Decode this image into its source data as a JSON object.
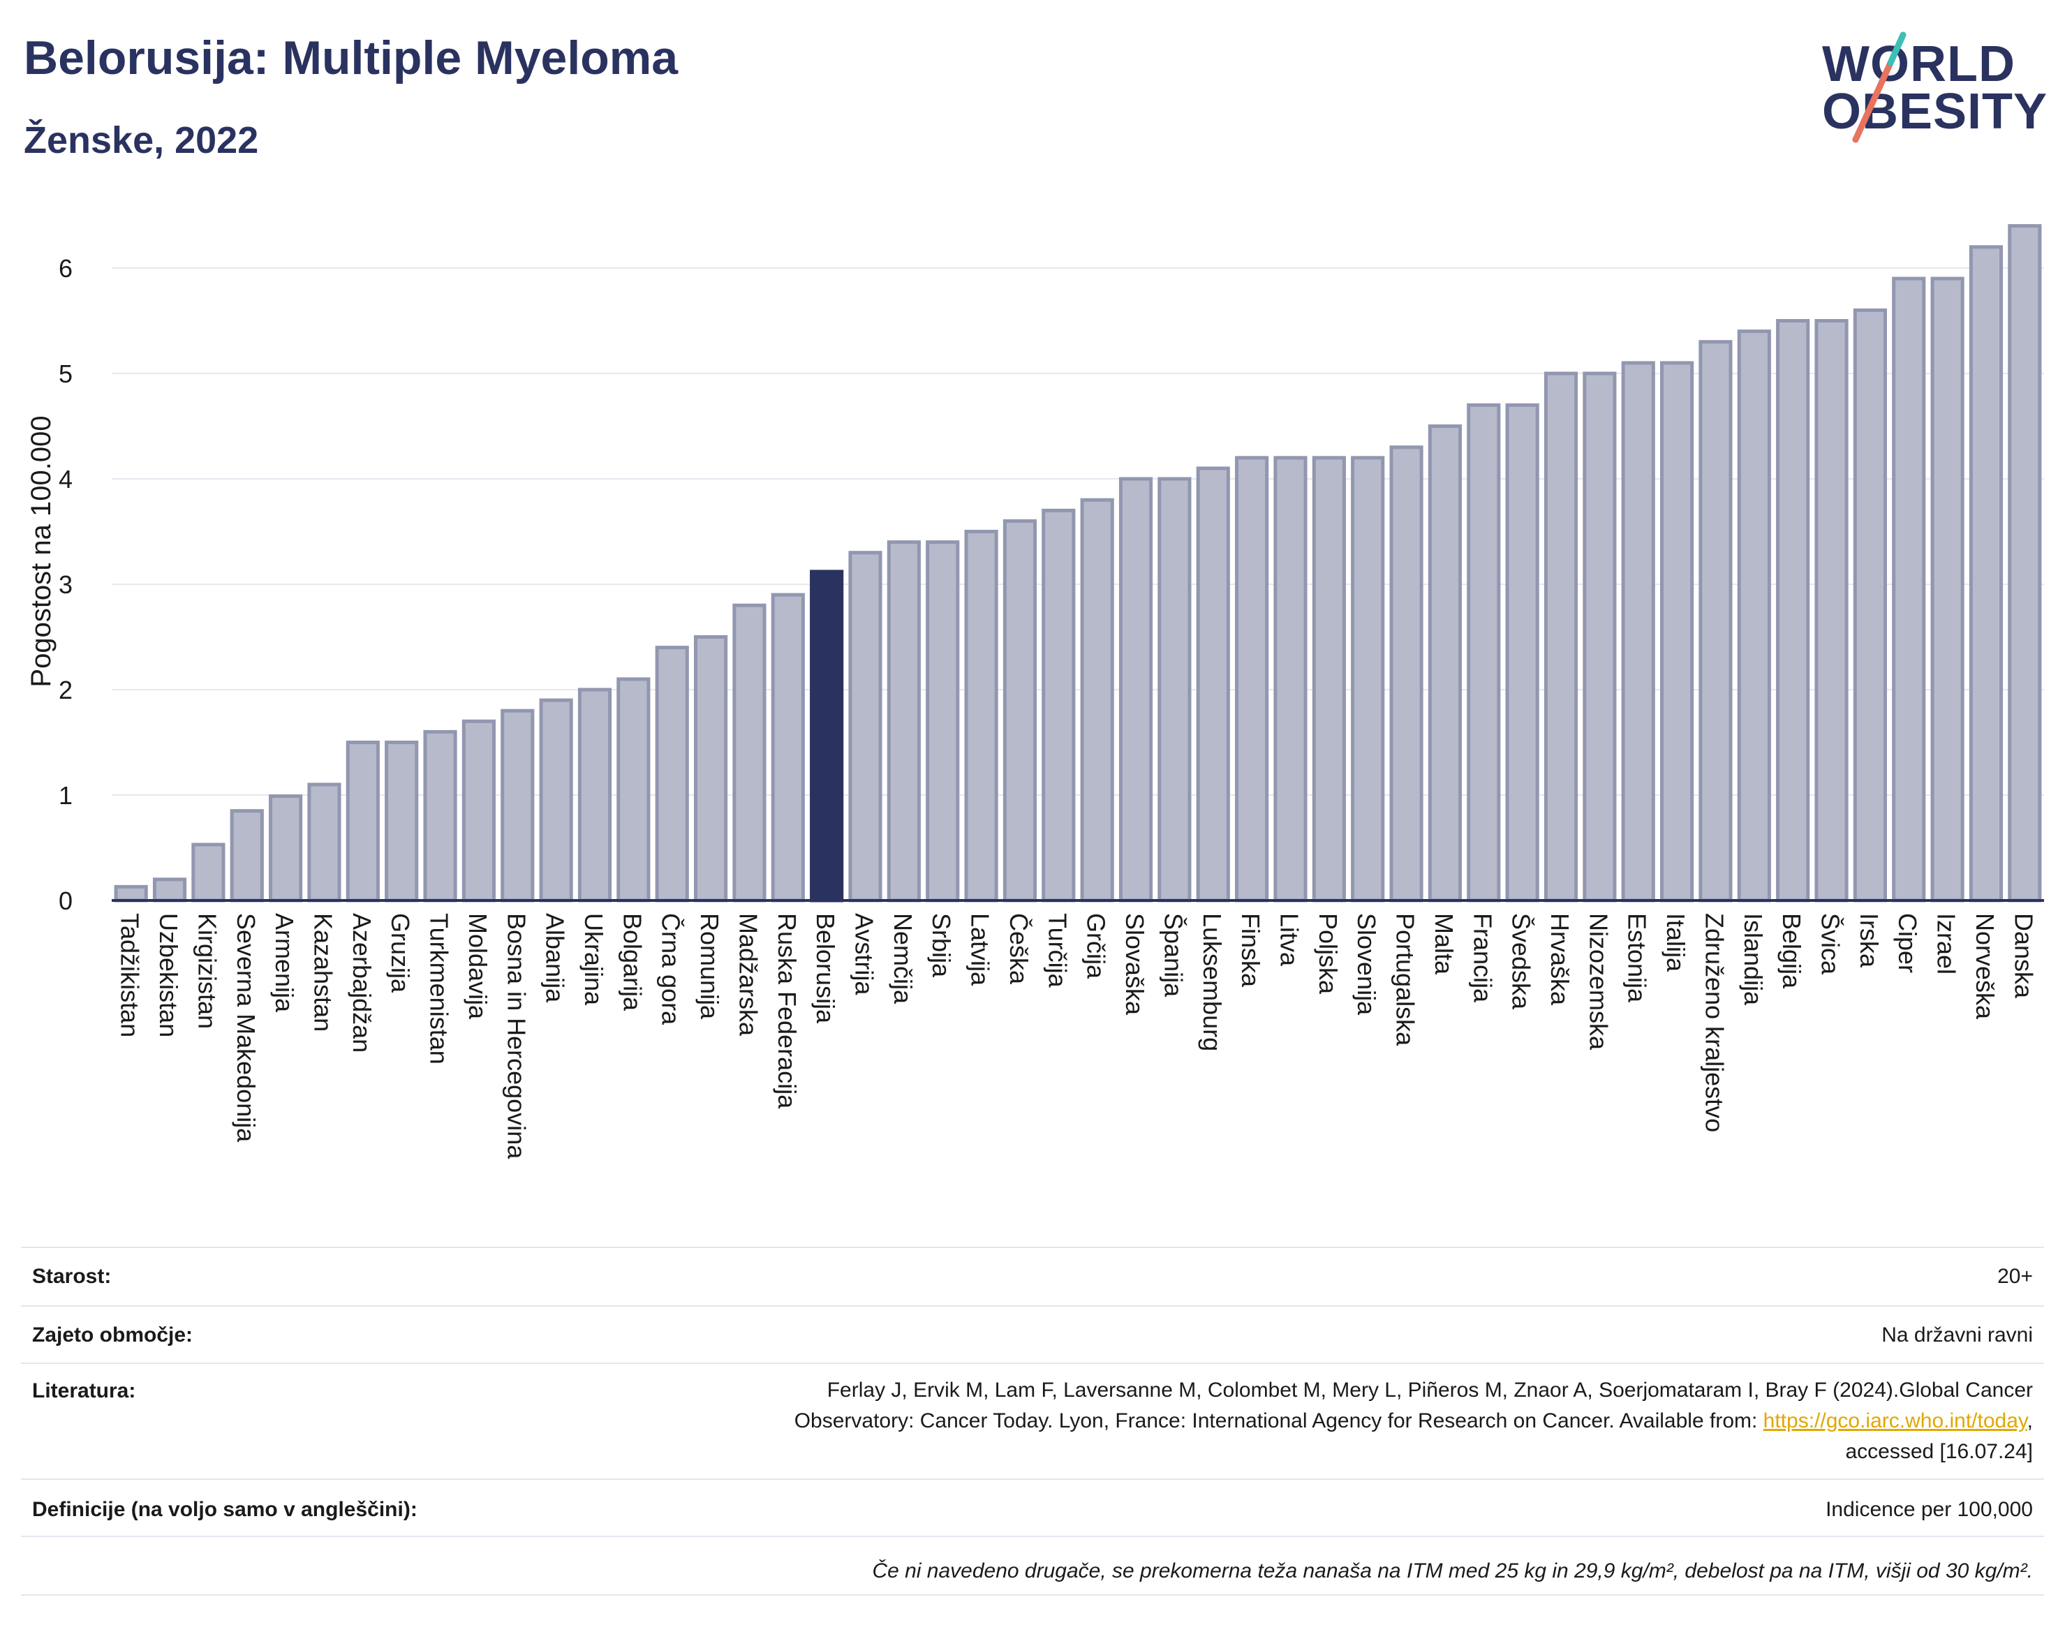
{
  "header": {
    "title": "Belorusija: Multiple Myeloma",
    "subtitle": "Ženske, 2022"
  },
  "logo": {
    "line1": "WORLD",
    "line2": "OBESITY"
  },
  "chart_data": {
    "type": "bar",
    "title": "Belorusija: Multiple Myeloma",
    "subtitle": "Ženske, 2022",
    "ylabel": "Pogostost na 100.000",
    "xlabel": "",
    "ylim": [
      0,
      6.5
    ],
    "yticks": [
      0,
      1,
      2,
      3,
      4,
      5,
      6
    ],
    "grid": true,
    "highlight": "Belorusija",
    "colors": {
      "bar": "#b6bacb",
      "bar_border": "#9297b0",
      "highlight": "#2a3260",
      "axis": "#2a3260",
      "grid": "#e6e8ef"
    },
    "categories": [
      "Tadžikistan",
      "Uzbekistan",
      "Kirgizistan",
      "Severna Makedonija",
      "Armenija",
      "Kazahstan",
      "Azerbajdžan",
      "Gruzija",
      "Turkmenistan",
      "Moldavija",
      "Bosna in Hercegovina",
      "Albanija",
      "Ukrajina",
      "Bolgarija",
      "Črna gora",
      "Romunija",
      "Madžarska",
      "Ruska Federacija",
      "Belorusija",
      "Avstrija",
      "Nemčija",
      "Srbija",
      "Latvija",
      "Češka",
      "Turčija",
      "Grčija",
      "Slovaška",
      "Španija",
      "Luksemburg",
      "Finska",
      "Litva",
      "Poljska",
      "Slovenija",
      "Portugalska",
      "Malta",
      "Francija",
      "Švedska",
      "Hrvaška",
      "Nizozemska",
      "Estonija",
      "Italija",
      "Združeno kraljestvo",
      "Islandija",
      "Belgija",
      "Švica",
      "Irska",
      "Ciper",
      "Izrael",
      "Norveška",
      "Danska"
    ],
    "values": [
      0.13,
      0.2,
      0.53,
      0.85,
      0.99,
      1.1,
      1.5,
      1.5,
      1.6,
      1.7,
      1.8,
      1.9,
      2.0,
      2.1,
      2.4,
      2.5,
      2.8,
      2.9,
      3.12,
      3.3,
      3.4,
      3.4,
      3.5,
      3.6,
      3.7,
      3.8,
      4.0,
      4.0,
      4.1,
      4.2,
      4.2,
      4.2,
      4.2,
      4.3,
      4.5,
      4.7,
      4.7,
      5.0,
      5.0,
      5.1,
      5.1,
      5.3,
      5.4,
      5.5,
      5.5,
      5.6,
      5.9,
      5.9,
      6.2,
      6.4
    ]
  },
  "meta": {
    "age_label": "Starost:",
    "age_value": "20+",
    "coverage_label": "Zajeto območje:",
    "coverage_value": "Na državni ravni",
    "reference_label": "Literatura:",
    "reference_line1": "Ferlay J, Ervik M, Lam F, Laversanne M, Colombet M, Mery L, Piñeros M, Znaor A, Soerjomataram I, Bray F (2024).Global Cancer",
    "reference_line2_pre": "Observatory: Cancer Today. Lyon, France: International Agency for Research on Cancer. Available from: ",
    "reference_link": "https://gco.iarc.who.int/today",
    "reference_line2_post": ",",
    "reference_line3": "accessed [16.07.24]",
    "definitions_label": "Definicije (na voljo samo v angleščini):",
    "definitions_value": "Indicence per 100,000",
    "footnote": "Če ni navedeno drugače, se prekomerna teža nanaša na ITM med 25 kg in 29,9 kg/m², debelost pa na ITM, višji od 30 kg/m²."
  }
}
